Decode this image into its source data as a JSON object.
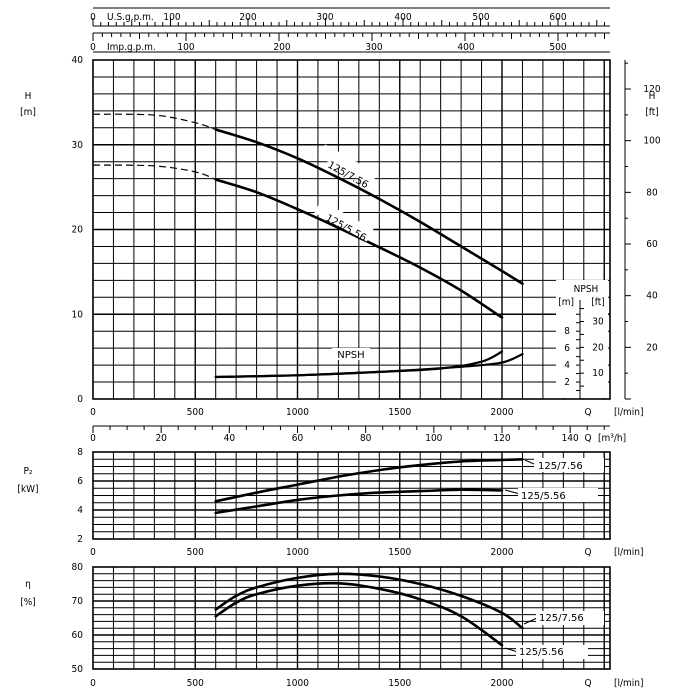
{
  "chart_data": [
    {
      "id": "head",
      "type": "line",
      "ylabel": "H",
      "yunit": "[m]",
      "y2label": "H",
      "y2unit": "[ft]",
      "xlabel": "Q",
      "xunit": "[l/min]",
      "x2label": "Q",
      "x2unit": "[m³/h]",
      "top_axis_1": {
        "label": "U.S.g.p.m.",
        "ticks": [
          "0",
          "100",
          "200",
          "300",
          "400",
          "500",
          "600"
        ]
      },
      "top_axis_2": {
        "label": "Imp.g.p.m.",
        "ticks": [
          "0",
          "100",
          "200",
          "300",
          "400",
          "500"
        ]
      },
      "xlim": [
        0,
        2500
      ],
      "ylim": [
        0,
        40
      ],
      "y_ticks": [
        "0",
        "10",
        "20",
        "30",
        "40"
      ],
      "x_ticks": [
        "0",
        "500",
        "1000",
        "1500",
        "2000"
      ],
      "x2_ticks": [
        "0",
        "20",
        "40",
        "60",
        "80",
        "100",
        "120",
        "140"
      ],
      "y2_ticks": [
        "20",
        "40",
        "60",
        "80",
        "100",
        "120"
      ],
      "grid": true,
      "series": [
        {
          "name": "125/7.56",
          "dashed_points": [
            [
              0,
              33.6
            ],
            [
              300,
              33.5
            ],
            [
              500,
              32.6
            ],
            [
              600,
              31.8
            ]
          ],
          "points": [
            [
              600,
              31.8
            ],
            [
              800,
              30.3
            ],
            [
              1000,
              28.4
            ],
            [
              1200,
              26.1
            ],
            [
              1400,
              23.6
            ],
            [
              1600,
              20.9
            ],
            [
              1800,
              18.0
            ],
            [
              2000,
              15.1
            ],
            [
              2100,
              13.6
            ]
          ]
        },
        {
          "name": "125/5.56",
          "dashed_points": [
            [
              0,
              27.6
            ],
            [
              300,
              27.5
            ],
            [
              500,
              26.8
            ],
            [
              600,
              25.9
            ]
          ],
          "points": [
            [
              600,
              25.9
            ],
            [
              800,
              24.4
            ],
            [
              1000,
              22.4
            ],
            [
              1200,
              20.2
            ],
            [
              1400,
              17.9
            ],
            [
              1600,
              15.5
            ],
            [
              1800,
              12.8
            ],
            [
              2000,
              9.6
            ]
          ]
        }
      ],
      "npsh": {
        "name": "NPSH",
        "axis_m_label": "[m]",
        "axis_ft_label": "[ft]",
        "axis_title": "NPSH",
        "m_ticks": [
          "2",
          "4",
          "6",
          "8"
        ],
        "ft_ticks": [
          "10",
          "20",
          "30"
        ],
        "series": [
          {
            "points": [
              [
                600,
                2.6
              ],
              [
                1000,
                2.8
              ],
              [
                1400,
                3.2
              ],
              [
                1800,
                3.8
              ],
              [
                2000,
                4.3
              ],
              [
                2100,
                5.3
              ]
            ]
          },
          {
            "points": [
              [
                600,
                2.6
              ],
              [
                1000,
                2.8
              ],
              [
                1400,
                3.2
              ],
              [
                1700,
                3.6
              ],
              [
                1900,
                4.4
              ],
              [
                2000,
                5.6
              ]
            ]
          }
        ]
      }
    },
    {
      "id": "power",
      "type": "line",
      "ylabel": "P₂",
      "yunit": "[kW]",
      "xlabel": "Q",
      "xunit": "[l/min]",
      "xlim": [
        0,
        2500
      ],
      "ylim": [
        2,
        8
      ],
      "y_ticks": [
        "2",
        "4",
        "6",
        "8"
      ],
      "x_ticks": [
        "0",
        "500",
        "1000",
        "1500",
        "2000"
      ],
      "grid": true,
      "series": [
        {
          "name": "125/7.56",
          "points": [
            [
              600,
              4.6
            ],
            [
              800,
              5.2
            ],
            [
              1000,
              5.75
            ],
            [
              1200,
              6.3
            ],
            [
              1400,
              6.75
            ],
            [
              1600,
              7.1
            ],
            [
              1800,
              7.35
            ],
            [
              2000,
              7.45
            ],
            [
              2100,
              7.5
            ]
          ]
        },
        {
          "name": "125/5.56",
          "points": [
            [
              600,
              3.8
            ],
            [
              800,
              4.25
            ],
            [
              1000,
              4.7
            ],
            [
              1200,
              5.0
            ],
            [
              1400,
              5.2
            ],
            [
              1600,
              5.3
            ],
            [
              1800,
              5.4
            ],
            [
              2000,
              5.35
            ]
          ]
        }
      ]
    },
    {
      "id": "efficiency",
      "type": "line",
      "ylabel": "η",
      "yunit": "[%]",
      "xlabel": "Q",
      "xunit": "[l/min]",
      "xlim": [
        0,
        2500
      ],
      "ylim": [
        50,
        80
      ],
      "y_ticks": [
        "50",
        "60",
        "70",
        "80"
      ],
      "x_ticks": [
        "0",
        "500",
        "1000",
        "1500",
        "2000"
      ],
      "grid": true,
      "series": [
        {
          "name": "125/7.56",
          "points": [
            [
              600,
              67.5
            ],
            [
              700,
              71.5
            ],
            [
              800,
              74
            ],
            [
              1000,
              76.8
            ],
            [
              1200,
              78
            ],
            [
              1400,
              77.2
            ],
            [
              1600,
              75
            ],
            [
              1800,
              71.5
            ],
            [
              2000,
              66.5
            ],
            [
              2100,
              62
            ]
          ]
        },
        {
          "name": "125/5.56",
          "points": [
            [
              600,
              65.5
            ],
            [
              700,
              69.5
            ],
            [
              800,
              72
            ],
            [
              1000,
              74.5
            ],
            [
              1200,
              75.2
            ],
            [
              1400,
              73.6
            ],
            [
              1600,
              70.5
            ],
            [
              1800,
              65.5
            ],
            [
              2000,
              57
            ]
          ]
        }
      ]
    }
  ]
}
